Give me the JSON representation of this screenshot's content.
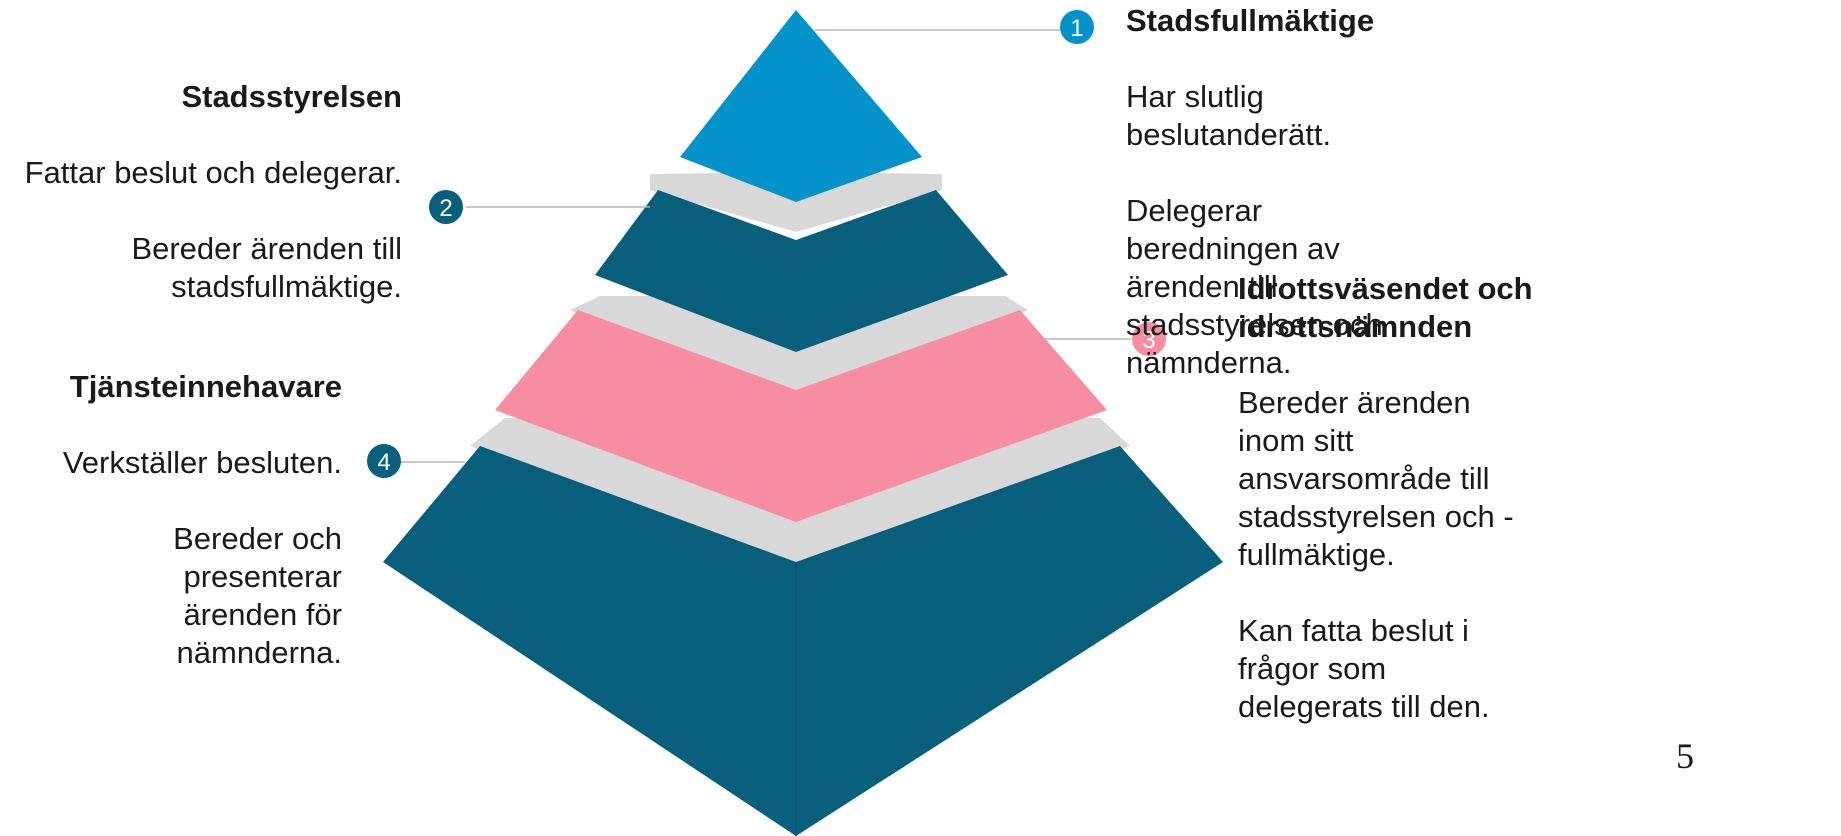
{
  "colors": {
    "level1": "#0392c9",
    "level2": "#075f7c",
    "level3": "#f78da3",
    "level4": "#075f7c",
    "separator": "#d8d8d8",
    "connector": "#b5b5b5"
  },
  "levels": [
    {
      "number": "1",
      "title": "Stadsfullmäktige",
      "lines": [
        "Har slutlig beslutanderätt.",
        "Delegerar beredningen av ärenden till stadsstyrelsen och nämnderna."
      ]
    },
    {
      "number": "2",
      "title": "Stadsstyrelsen",
      "lines": [
        "Fattar beslut och delegerar.",
        "Bereder ärenden till stadsfullmäktige."
      ]
    },
    {
      "number": "3",
      "title": "Idrottsväsendet och idrottsnämnden",
      "lines": [
        "Bereder ärenden inom sitt ansvarsområde till stadsstyrelsen och -fullmäktige.",
        "Kan fatta beslut i frågor som delegerats till den."
      ]
    },
    {
      "number": "4",
      "title": "Tjänsteinnehavare",
      "lines": [
        "Verkställer besluten.",
        "Bereder och presenterar ärenden för nämnderna."
      ]
    }
  ],
  "page_number": "5"
}
